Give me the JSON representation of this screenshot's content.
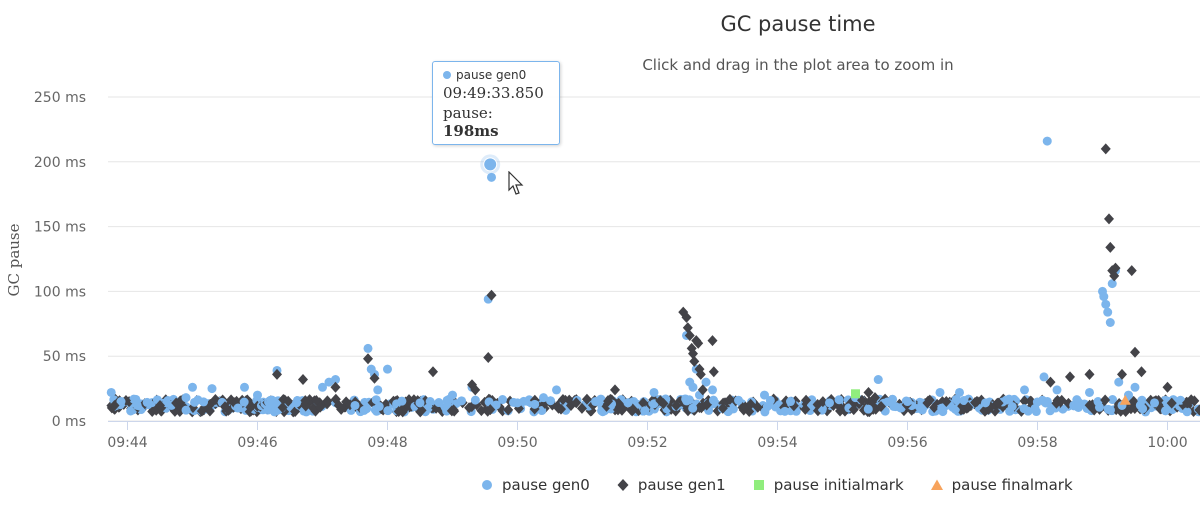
{
  "chart_data": {
    "type": "scatter",
    "title": "GC pause time",
    "subtitle": "Click and drag in the plot area to zoom in",
    "xlabel": "",
    "ylabel": "GC pause",
    "ylim": [
      0,
      250
    ],
    "y_ticks": [
      "0 ms",
      "50 ms",
      "100 ms",
      "150 ms",
      "200 ms",
      "250 ms"
    ],
    "y_tick_values": [
      0,
      50,
      100,
      150,
      200,
      250
    ],
    "x_ticks": [
      "09:44",
      "09:46",
      "09:48",
      "09:50",
      "09:52",
      "09:54",
      "09:56",
      "09:58",
      "10:00"
    ],
    "x_tick_minutes": [
      584,
      586,
      588,
      590,
      592,
      594,
      596,
      598,
      600
    ],
    "xlim_minutes": [
      583.7,
      600.5
    ],
    "grid": true,
    "legend_position": "bottom-center",
    "colors": {
      "gen0": "#7cb5ec",
      "gen1": "#434348",
      "initialmark": "#90ed7d",
      "finalmark": "#f7a35c"
    },
    "series": [
      {
        "name": "pause gen0",
        "marker": "circle",
        "color": "#7cb5ec",
        "points": [
          [
            583.75,
            22
          ],
          [
            583.9,
            15
          ],
          [
            584.15,
            12
          ],
          [
            584.6,
            14
          ],
          [
            584.9,
            18
          ],
          [
            585.0,
            26
          ],
          [
            585.3,
            25
          ],
          [
            585.7,
            10
          ],
          [
            585.8,
            26
          ],
          [
            586.0,
            20
          ],
          [
            586.2,
            16
          ],
          [
            586.3,
            39
          ],
          [
            586.6,
            14
          ],
          [
            587.0,
            26
          ],
          [
            587.1,
            30
          ],
          [
            587.2,
            32
          ],
          [
            587.5,
            12
          ],
          [
            587.7,
            56
          ],
          [
            587.75,
            40
          ],
          [
            587.8,
            36
          ],
          [
            587.85,
            24
          ],
          [
            588.0,
            40
          ],
          [
            588.5,
            14
          ],
          [
            589.0,
            20
          ],
          [
            589.3,
            26
          ],
          [
            589.58,
            198
          ],
          [
            589.6,
            188
          ],
          [
            589.55,
            94
          ],
          [
            590.0,
            14
          ],
          [
            590.4,
            18
          ],
          [
            590.6,
            24
          ],
          [
            591.2,
            15
          ],
          [
            591.7,
            14
          ],
          [
            592.1,
            22
          ],
          [
            592.6,
            66
          ],
          [
            592.65,
            30
          ],
          [
            592.7,
            26
          ],
          [
            592.75,
            40
          ],
          [
            592.8,
            20
          ],
          [
            592.9,
            30
          ],
          [
            593.0,
            24
          ],
          [
            593.4,
            16
          ],
          [
            593.8,
            20
          ],
          [
            594.2,
            15
          ],
          [
            594.8,
            14
          ],
          [
            595.2,
            18
          ],
          [
            595.55,
            32
          ],
          [
            596.0,
            15
          ],
          [
            596.5,
            22
          ],
          [
            596.8,
            22
          ],
          [
            597.2,
            14
          ],
          [
            597.8,
            24
          ],
          [
            598.1,
            34
          ],
          [
            598.15,
            216
          ],
          [
            598.3,
            24
          ],
          [
            598.8,
            22
          ],
          [
            599.0,
            100
          ],
          [
            599.02,
            96
          ],
          [
            599.05,
            90
          ],
          [
            599.08,
            84
          ],
          [
            599.12,
            76
          ],
          [
            599.15,
            106
          ],
          [
            599.2,
            116
          ],
          [
            599.25,
            30
          ],
          [
            599.3,
            12
          ],
          [
            599.4,
            20
          ],
          [
            599.5,
            26
          ],
          [
            599.8,
            14
          ],
          [
            600.2,
            16
          ]
        ]
      },
      {
        "name": "pause gen1",
        "marker": "diamond",
        "color": "#434348",
        "points": [
          [
            583.8,
            12
          ],
          [
            584.5,
            12
          ],
          [
            585.5,
            11
          ],
          [
            586.3,
            36
          ],
          [
            586.7,
            32
          ],
          [
            587.2,
            26
          ],
          [
            587.7,
            48
          ],
          [
            587.8,
            33
          ],
          [
            588.7,
            38
          ],
          [
            589.3,
            28
          ],
          [
            589.35,
            24
          ],
          [
            589.6,
            97
          ],
          [
            589.55,
            49
          ],
          [
            591.5,
            24
          ],
          [
            592.55,
            84
          ],
          [
            592.6,
            80
          ],
          [
            592.62,
            72
          ],
          [
            592.65,
            66
          ],
          [
            592.68,
            56
          ],
          [
            592.7,
            52
          ],
          [
            592.72,
            46
          ],
          [
            592.75,
            62
          ],
          [
            592.78,
            60
          ],
          [
            592.8,
            40
          ],
          [
            592.82,
            36
          ],
          [
            592.85,
            24
          ],
          [
            593.0,
            62
          ],
          [
            593.02,
            38
          ],
          [
            595.3,
            16
          ],
          [
            595.4,
            22
          ],
          [
            595.5,
            18
          ],
          [
            598.2,
            30
          ],
          [
            598.5,
            34
          ],
          [
            598.8,
            36
          ],
          [
            599.05,
            210
          ],
          [
            599.1,
            156
          ],
          [
            599.12,
            134
          ],
          [
            599.15,
            116
          ],
          [
            599.18,
            112
          ],
          [
            599.2,
            118
          ],
          [
            599.3,
            36
          ],
          [
            599.45,
            116
          ],
          [
            599.5,
            53
          ],
          [
            599.6,
            38
          ],
          [
            600.0,
            26
          ],
          [
            600.3,
            14
          ]
        ]
      },
      {
        "name": "pause initialmark",
        "marker": "square",
        "color": "#90ed7d",
        "points": [
          [
            595.2,
            21
          ]
        ]
      },
      {
        "name": "pause finalmark",
        "marker": "triangle",
        "color": "#f7a35c",
        "points": [
          [
            599.35,
            16
          ]
        ]
      }
    ],
    "tooltip": {
      "series": "pause gen0",
      "time": "09:49:33.850",
      "label": "pause:",
      "value": "198ms",
      "x_minutes": 589.58,
      "y_ms": 198
    }
  }
}
